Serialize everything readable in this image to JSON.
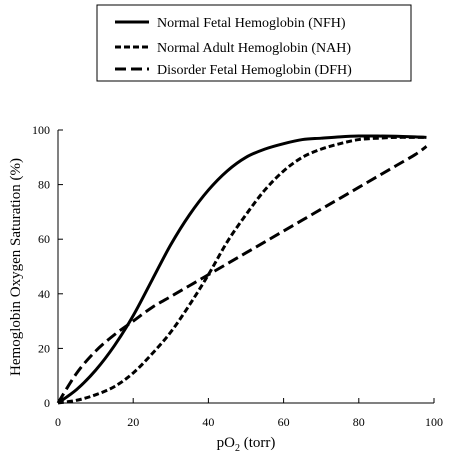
{
  "chart_data": {
    "type": "line",
    "title": "",
    "xlabel_main": "pO",
    "xlabel_sub": "2",
    "xlabel_rest": " (torr)",
    "ylabel": "Hemoglobin Oxygen Saturation (%)",
    "xlim": [
      0,
      100
    ],
    "ylim": [
      0,
      100
    ],
    "xticks": [
      0,
      20,
      40,
      60,
      80,
      100
    ],
    "yticks": [
      0,
      20,
      40,
      60,
      80,
      100
    ],
    "grid": false,
    "legend_position": "top-center",
    "series": [
      {
        "name": "Normal Fetal Hemoglobin (NFH)",
        "style": "solid",
        "color": "#000000",
        "x": [
          0,
          5,
          10,
          15,
          20,
          25,
          30,
          35,
          40,
          45,
          50,
          55,
          60,
          65,
          70,
          75,
          80,
          85,
          90,
          95,
          98
        ],
        "y": [
          0,
          5,
          12,
          21,
          32,
          45,
          58,
          69,
          78,
          85,
          90,
          93,
          95,
          96.5,
          97,
          97.5,
          97.8,
          97.8,
          97.7,
          97.5,
          97.3
        ]
      },
      {
        "name": "Normal Adult Hemoglobin (NAH)",
        "style": "dotted",
        "color": "#000000",
        "x": [
          0,
          5,
          10,
          15,
          20,
          25,
          30,
          35,
          40,
          45,
          50,
          55,
          60,
          65,
          70,
          75,
          80,
          85,
          90,
          95,
          98
        ],
        "y": [
          0,
          1,
          3,
          6,
          11,
          18,
          26,
          36,
          47,
          59,
          69,
          78,
          85,
          90,
          93,
          95,
          96.5,
          97,
          97.3,
          97.3,
          97.3
        ]
      },
      {
        "name": "Disorder Fetal Hemoglobin (DFH)",
        "style": "dashed",
        "color": "#000000",
        "x": [
          0,
          5,
          10,
          15,
          20,
          25,
          30,
          35,
          40,
          45,
          50,
          55,
          60,
          65,
          70,
          75,
          80,
          85,
          90,
          95,
          98
        ],
        "y": [
          0,
          11,
          19,
          25,
          30,
          35,
          39,
          43,
          47,
          51,
          55,
          59,
          63,
          67,
          71,
          75,
          79,
          83,
          87,
          91,
          94
        ]
      }
    ]
  }
}
